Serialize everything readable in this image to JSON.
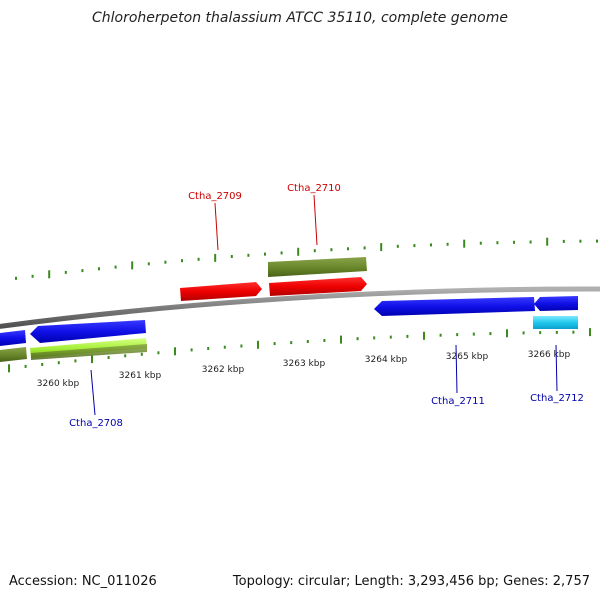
{
  "title": "Chloroherpeton thalassium ATCC 35110, complete genome",
  "footer": {
    "accession": "Accession: NC_011026",
    "summary": "Topology: circular; Length: 3,293,456 bp; Genes: 2,757"
  },
  "colors": {
    "backbone": "#8a8a8a",
    "tick": "#3a8a1e",
    "red_label": "#cc0000",
    "blue_label": "#0000aa"
  },
  "scale_labels": [
    "3260 kbp",
    "3261 kbp",
    "3262 kbp",
    "3263 kbp",
    "3264 kbp",
    "3265 kbp",
    "3266 kbp"
  ],
  "genes": [
    {
      "label": "Ctha_2708",
      "color_key": "blue_label"
    },
    {
      "label": "Ctha_2709",
      "color_key": "red_label"
    },
    {
      "label": "Ctha_2710",
      "color_key": "red_label"
    },
    {
      "label": "Ctha_2711",
      "color_key": "blue_label"
    },
    {
      "label": "Ctha_2712",
      "color_key": "blue_label"
    }
  ]
}
